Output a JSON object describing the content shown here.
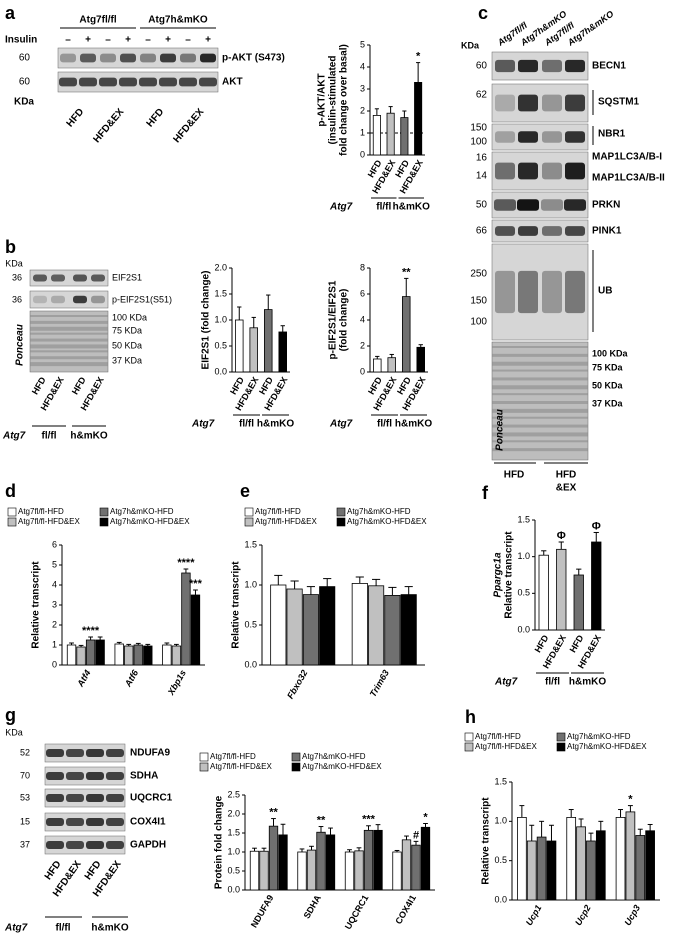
{
  "chart_data": [
    {
      "type": "bar",
      "y_label": [
        "p-AKT/AKT",
        "(insulin-stimulated",
        "fold change over basal)"
      ],
      "categories": [
        "HFD",
        "HFD&EX",
        "HFD",
        "HFD&EX"
      ],
      "series": [
        {
          "colors": [
            "#ffffff",
            "#c0c0c0",
            "#707070",
            "#000000"
          ],
          "values": [
            1.8,
            1.9,
            1.7,
            3.3
          ],
          "errors": [
            0.3,
            0.3,
            0.3,
            0.9
          ],
          "annotations": [
            null,
            null,
            null,
            "*"
          ]
        }
      ],
      "ylim": [
        0,
        5
      ],
      "yticks": [
        0,
        1,
        2,
        3,
        4,
        5
      ],
      "reference_line": 1,
      "group_title": "Atg7",
      "groups": [
        "fl/fl",
        "h&mKO"
      ]
    },
    {
      "type": "bar",
      "y_label": "EIF2S1 (fold change)",
      "categories": [
        "HFD",
        "HFD&EX",
        "HFD",
        "HFD&EX"
      ],
      "series": [
        {
          "colors": [
            "#ffffff",
            "#c0c0c0",
            "#707070",
            "#000000"
          ],
          "values": [
            1.0,
            0.85,
            1.2,
            0.77
          ],
          "errors": [
            0.25,
            0.2,
            0.28,
            0.12
          ]
        }
      ],
      "ylim": [
        0,
        2
      ],
      "yticks": [
        {
          "value": 0,
          "label": "0.0"
        },
        {
          "value": 0.5,
          "label": "0.5"
        },
        {
          "value": 1,
          "label": "1.0"
        },
        {
          "value": 1.5,
          "label": "1.5"
        },
        {
          "value": 2,
          "label": "2.0"
        }
      ],
      "group_title": "Atg7",
      "groups": [
        "fl/fl",
        "h&mKO"
      ]
    },
    {
      "type": "bar",
      "y_label": [
        "p-EIF2S1/EIF2S1",
        "(fold change)"
      ],
      "categories": [
        "HFD",
        "HFD&EX",
        "HFD",
        "HFD&EX"
      ],
      "series": [
        {
          "colors": [
            "#ffffff",
            "#c0c0c0",
            "#707070",
            "#000000"
          ],
          "values": [
            1.0,
            1.1,
            5.8,
            1.9
          ],
          "errors": [
            0.2,
            0.25,
            1.4,
            0.2
          ],
          "annotations": [
            null,
            null,
            "**",
            null
          ]
        }
      ],
      "ylim": [
        0,
        8
      ],
      "yticks": [
        0,
        2,
        4,
        6,
        8
      ],
      "group_title": "Atg7",
      "groups": [
        "fl/fl",
        "h&mKO"
      ]
    },
    {
      "type": "bar",
      "panel": "d",
      "y_label": "Relative transcript",
      "categories": [
        "Atf4",
        "Atf6",
        "Xbp1s"
      ],
      "italic_categories": true,
      "series": [
        {
          "name": "Atg7fl/fl-HFD",
          "color": "#ffffff",
          "values": [
            1.0,
            1.05,
            1.0
          ],
          "errors": [
            0.1,
            0.08,
            0.1
          ]
        },
        {
          "name": "Atg7fl/fl-HFD&EX",
          "color": "#c0c0c0",
          "values": [
            0.9,
            0.95,
            0.95
          ],
          "errors": [
            0.08,
            0.08,
            0.08
          ]
        },
        {
          "name": "Atg7h&mKO-HFD",
          "color": "#707070",
          "values": [
            1.25,
            1.0,
            4.6
          ],
          "errors": [
            0.15,
            0.08,
            0.2
          ],
          "annotations": [
            "****",
            null,
            "****"
          ]
        },
        {
          "name": "Atg7h&mKO-HFD&EX",
          "color": "#000000",
          "values": [
            1.25,
            0.95,
            3.5
          ],
          "errors": [
            0.15,
            0.08,
            0.25
          ],
          "annotations": [
            null,
            null,
            "***"
          ]
        }
      ],
      "ylim": [
        0,
        6
      ],
      "yticks": [
        0,
        1,
        2,
        3,
        4,
        5,
        6
      ]
    },
    {
      "type": "bar",
      "panel": "e",
      "y_label": "Relative transcript",
      "categories": [
        "Fbxo32",
        "Trim63"
      ],
      "italic_categories": true,
      "series": [
        {
          "name": "Atg7fl/fl-HFD",
          "color": "#ffffff",
          "values": [
            1.0,
            1.02
          ],
          "errors": [
            0.12,
            0.08
          ]
        },
        {
          "name": "Atg7fl/fl-HFD&EX",
          "color": "#c0c0c0",
          "values": [
            0.95,
            0.99
          ],
          "errors": [
            0.1,
            0.08
          ]
        },
        {
          "name": "Atg7h&mKO-HFD",
          "color": "#707070",
          "values": [
            0.88,
            0.87
          ],
          "errors": [
            0.1,
            0.1
          ]
        },
        {
          "name": "Atg7h&mKO-HFD&EX",
          "color": "#000000",
          "values": [
            0.98,
            0.88
          ],
          "errors": [
            0.1,
            0.1
          ]
        }
      ],
      "ylim": [
        0,
        1.5
      ],
      "yticks": [
        {
          "value": 0,
          "label": "0.0"
        },
        {
          "value": 0.5,
          "label": "0.5"
        },
        {
          "value": 1,
          "label": "1.0"
        },
        {
          "value": 1.5,
          "label": "1.5"
        }
      ]
    },
    {
      "type": "bar",
      "panel": "f",
      "y_label": [
        "Ppargc1a",
        "Relative transcript"
      ],
      "italic_first_y_label_line": true,
      "categories": [
        "HFD",
        "HFD&EX",
        "HFD",
        "HFD&EX"
      ],
      "series": [
        {
          "colors": [
            "#ffffff",
            "#c0c0c0",
            "#707070",
            "#000000"
          ],
          "values": [
            1.02,
            1.1,
            0.75,
            1.2
          ],
          "errors": [
            0.06,
            0.1,
            0.08,
            0.13
          ],
          "annotations": [
            null,
            "Φ",
            null,
            "Φ"
          ]
        }
      ],
      "ylim": [
        0,
        1.5
      ],
      "yticks": [
        {
          "value": 0,
          "label": "0.0"
        },
        {
          "value": 0.5,
          "label": "0.5"
        },
        {
          "value": 1,
          "label": "1.0"
        },
        {
          "value": 1.5,
          "label": "1.5"
        }
      ],
      "group_title": "Atg7",
      "groups": [
        "fl/fl",
        "h&mKO"
      ]
    },
    {
      "type": "bar",
      "y_label": "Protein fold change",
      "categories": [
        "NDUFA9",
        "SDHA",
        "UQCRC1",
        "COX4I1"
      ],
      "series": [
        {
          "name": "Atg7fl/fl-HFD",
          "color": "#ffffff",
          "values": [
            1.02,
            1.0,
            1.0,
            1.0
          ],
          "errors": [
            0.08,
            0.08,
            0.06,
            0.04
          ]
        },
        {
          "name": "Atg7fl/fl-HFD&EX",
          "color": "#c0c0c0",
          "values": [
            1.02,
            1.05,
            1.03,
            1.32
          ],
          "errors": [
            0.08,
            0.1,
            0.08,
            0.1
          ]
        },
        {
          "name": "Atg7h&mKO-HFD",
          "color": "#707070",
          "values": [
            1.68,
            1.52,
            1.57,
            1.18
          ],
          "errors": [
            0.2,
            0.15,
            0.12,
            0.1
          ],
          "annotations": [
            "**",
            "**",
            "***",
            "#"
          ]
        },
        {
          "name": "Atg7h&mKO-HFD&EX",
          "color": "#000000",
          "values": [
            1.45,
            1.45,
            1.57,
            1.65
          ],
          "errors": [
            0.28,
            0.18,
            0.15,
            0.1
          ],
          "annotations": [
            null,
            null,
            null,
            "*"
          ]
        }
      ],
      "ylim": [
        0,
        2.5
      ],
      "yticks": [
        {
          "value": 0,
          "label": "0.0"
        },
        {
          "value": 0.5,
          "label": "0.5"
        },
        {
          "value": 1,
          "label": "1.0"
        },
        {
          "value": 1.5,
          "label": "1.5"
        },
        {
          "value": 2,
          "label": "2.0"
        },
        {
          "value": 2.5,
          "label": "2.5"
        }
      ]
    },
    {
      "type": "bar",
      "panel": "h",
      "y_label": "Relative transcript",
      "categories": [
        "Ucp1",
        "Ucp2",
        "Ucp3"
      ],
      "italic_categories": true,
      "series": [
        {
          "name": "Atg7fl/fl-HFD",
          "color": "#ffffff",
          "values": [
            1.05,
            1.05,
            1.05
          ],
          "errors": [
            0.15,
            0.1,
            0.1
          ]
        },
        {
          "name": "Atg7fl/fl-HFD&EX",
          "color": "#c0c0c0",
          "values": [
            0.75,
            0.93,
            1.12
          ],
          "errors": [
            0.2,
            0.1,
            0.08
          ],
          "annotations": [
            null,
            null,
            "*"
          ]
        },
        {
          "name": "Atg7h&mKO-HFD",
          "color": "#707070",
          "values": [
            0.8,
            0.75,
            0.82
          ],
          "errors": [
            0.2,
            0.1,
            0.08
          ]
        },
        {
          "name": "Atg7h&mKO-HFD&EX",
          "color": "#000000",
          "values": [
            0.75,
            0.88,
            0.88
          ],
          "errors": [
            0.2,
            0.12,
            0.08
          ]
        }
      ],
      "ylim": [
        0,
        1.5
      ],
      "yticks": [
        {
          "value": 0,
          "label": "0.0"
        },
        {
          "value": 0.5,
          "label": "0.5"
        },
        {
          "value": 1,
          "label": "1.0"
        },
        {
          "value": 1.5,
          "label": "1.5"
        }
      ]
    }
  ],
  "blots": {
    "a": {
      "panel": "a",
      "genotypes": [
        "Atg7fl/fl",
        "Atg7h&mKO"
      ],
      "insulin_label": "Insulin",
      "insulin": [
        "–",
        "+",
        "–",
        "+",
        "–",
        "+",
        "–",
        "+"
      ],
      "rows": [
        {
          "kda": 60,
          "name": "p-AKT (S473)"
        },
        {
          "kda": 60,
          "name": "AKT"
        }
      ],
      "kda_label": "KDa",
      "conditions": [
        "HFD",
        "HFD&EX",
        "HFD",
        "HFD&EX"
      ]
    },
    "b": {
      "panel": "b",
      "kda_label": "KDa",
      "rows": [
        {
          "kda": 36,
          "name": "EIF2S1"
        },
        {
          "kda": 36,
          "name": "p-EIF2S1(S51)"
        }
      ],
      "ponceau_markers": [
        "100 KDa",
        "75 KDa",
        "50 KDa",
        "37 KDa"
      ],
      "ponceau_label": "Ponceau",
      "conditions": [
        "HFD",
        "HFD&EX",
        "HFD",
        "HFD&EX"
      ],
      "group_title": "Atg7",
      "groups": [
        "fl/fl",
        "h&mKO"
      ]
    },
    "c": {
      "panel": "c",
      "kda_label": "KDa",
      "lanes": [
        "Atg7fl/fl",
        "Atg7h&mKO",
        "Atg7fl/fl",
        "Atg7h&mKO"
      ],
      "markers": [
        60,
        62,
        150,
        100,
        16,
        14,
        50,
        66,
        250,
        150,
        100
      ],
      "proteins": [
        "BECN1",
        "SQSTM1",
        "NBR1",
        "MAP1LC3A/B-I",
        "MAP1LC3A/B-II",
        "PRKN",
        "PINK1",
        "UB"
      ],
      "ponceau_markers": [
        "100 KDa",
        "75 KDa",
        "50 KDa",
        "37 KDa"
      ],
      "ponceau_label": "Ponceau",
      "condition_lines": [
        [
          "HFD"
        ],
        [
          "HFD",
          "&EX"
        ]
      ]
    },
    "g": {
      "panel": "g",
      "kda_label": "KDa",
      "rows": [
        {
          "kda": 52,
          "name": "NDUFA9"
        },
        {
          "kda": 70,
          "name": "SDHA"
        },
        {
          "kda": 53,
          "name": "UQCRC1"
        },
        {
          "kda": 15,
          "name": "COX4I1"
        },
        {
          "kda": 37,
          "name": "GAPDH"
        }
      ],
      "conditions": [
        "HFD",
        "HFD&EX",
        "HFD",
        "HFD&EX"
      ],
      "group_title": "Atg7",
      "groups": [
        "fl/fl",
        "h&mKO"
      ]
    }
  }
}
